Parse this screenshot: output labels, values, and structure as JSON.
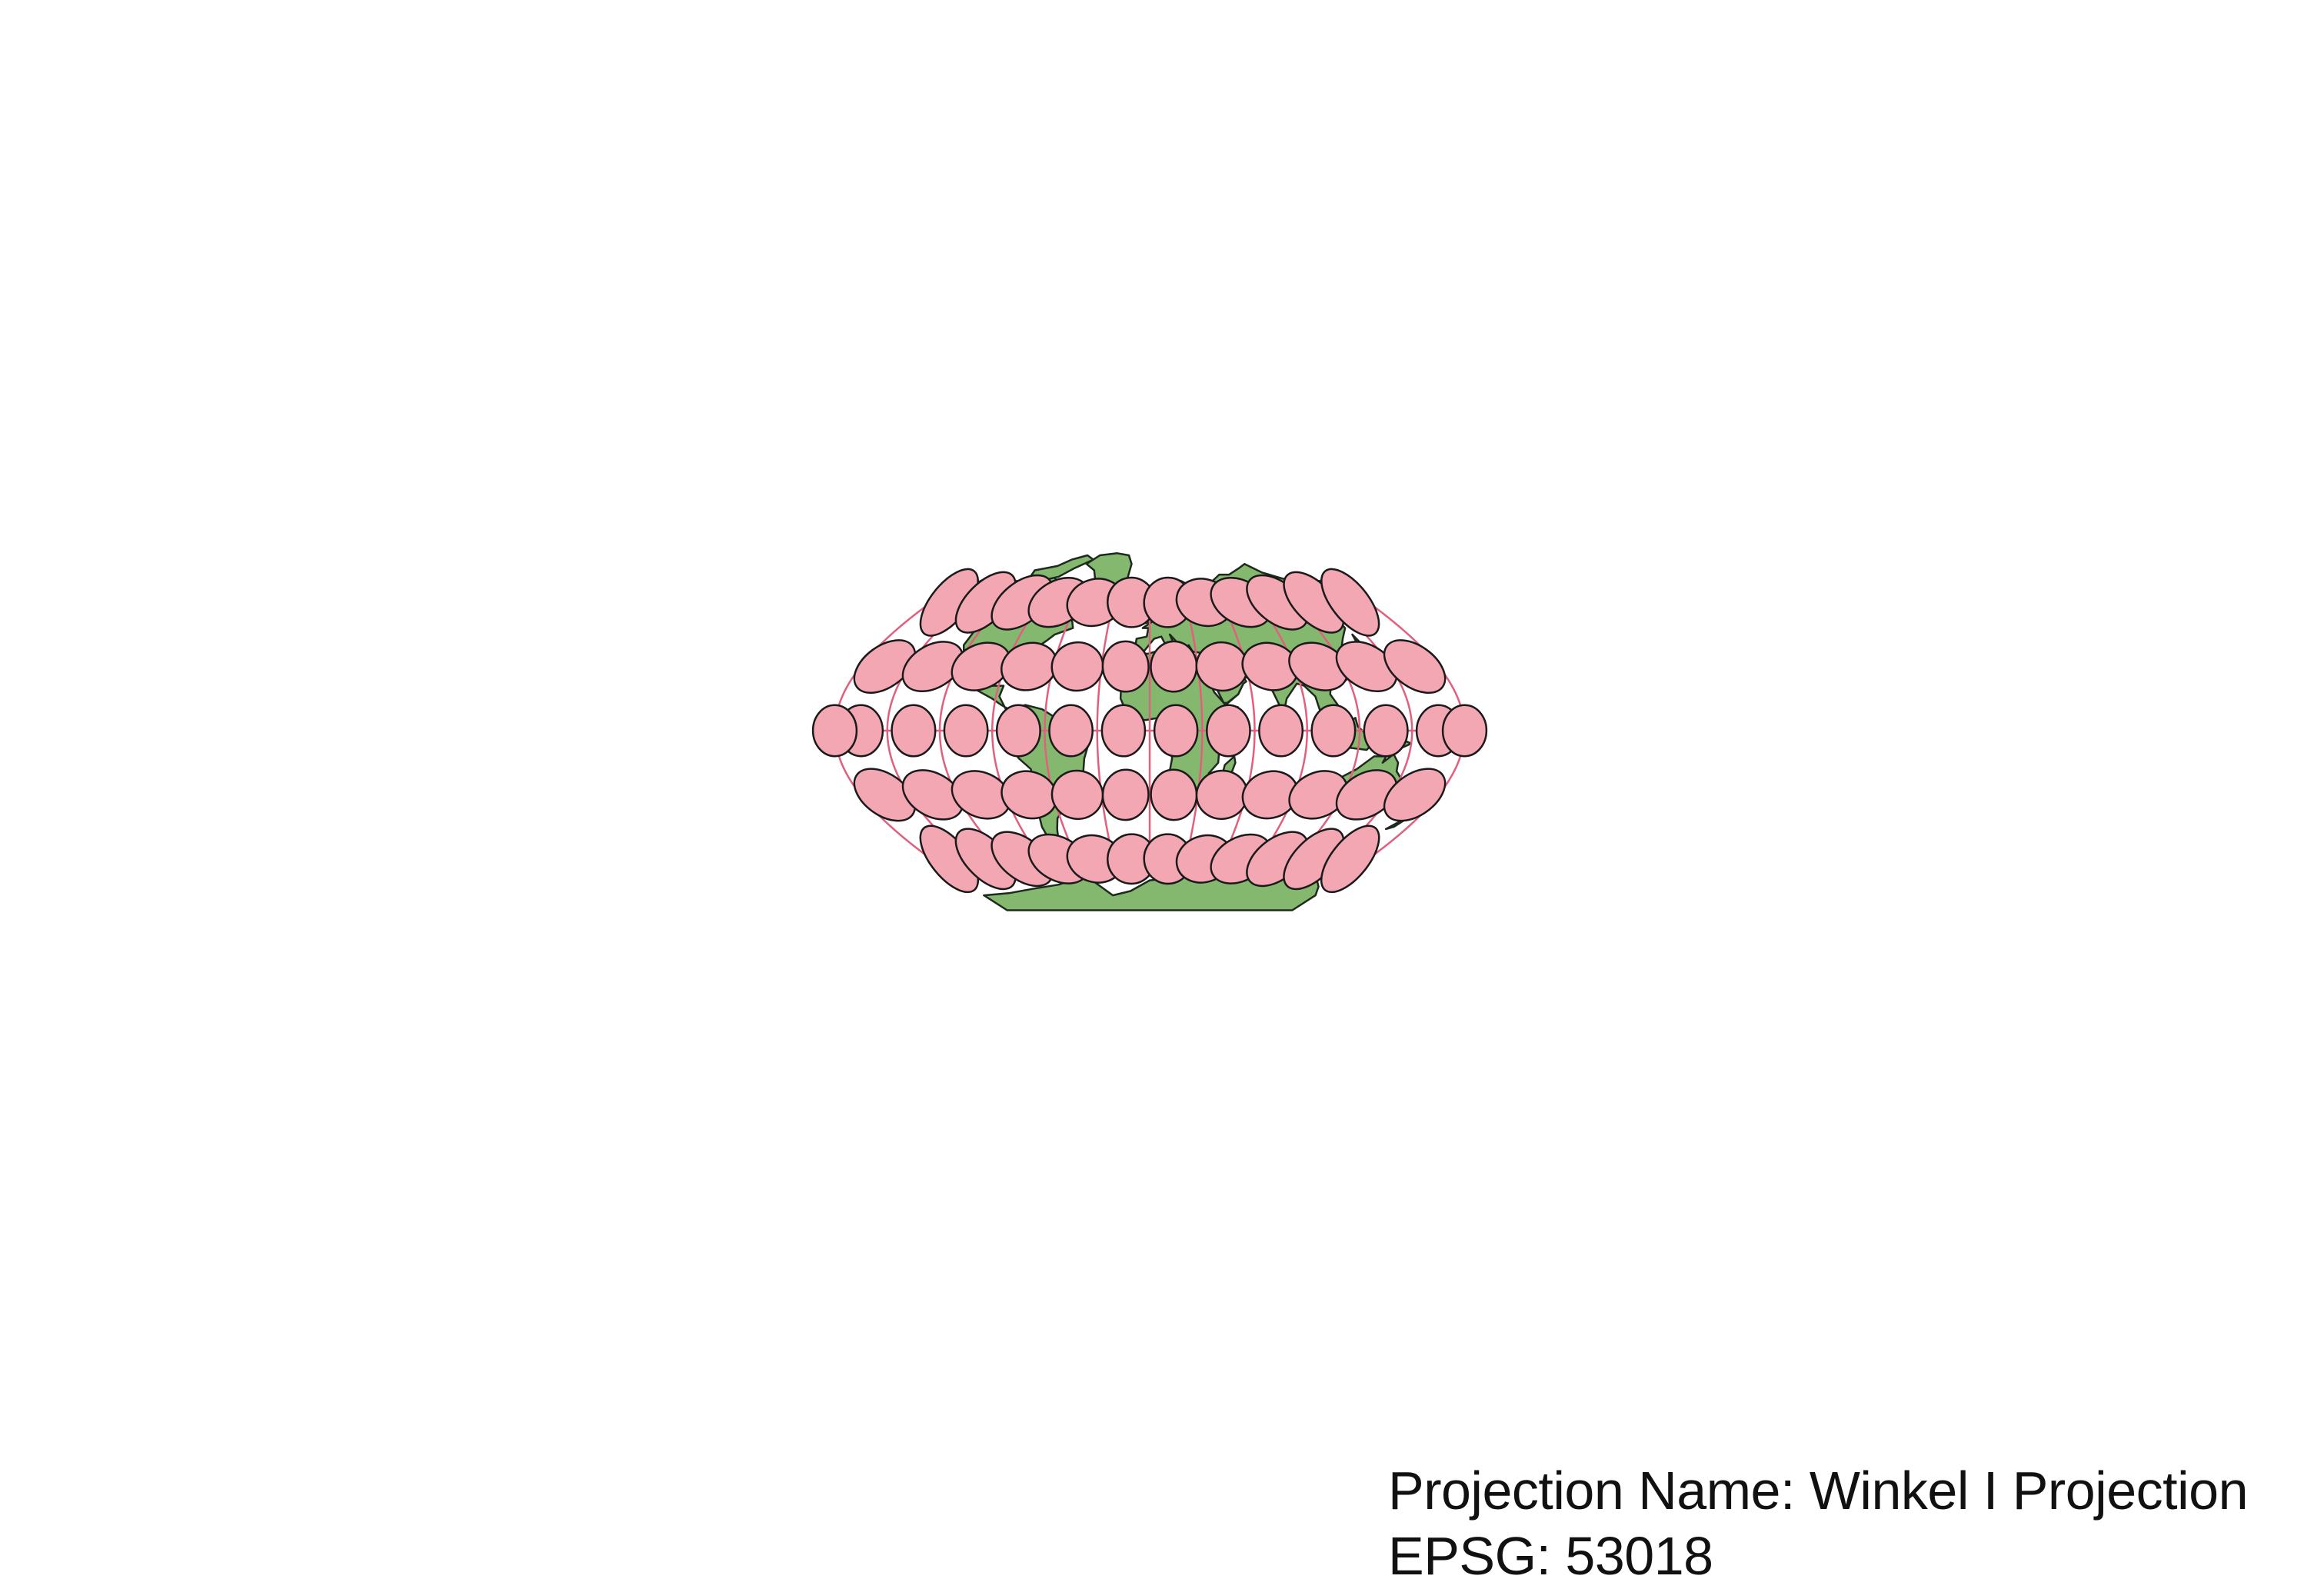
{
  "caption": {
    "projection_name": "Projection Name: Winkel I Projection",
    "epsg": "EPSG: 53018"
  },
  "colors": {
    "land": "#85b86f",
    "land_stroke": "#1d2a1d",
    "ellipse_fill": "#f2a7b3",
    "ellipse_stroke": "#1a1a1a",
    "graticule": "#e0607e",
    "background": "#ffffff"
  },
  "graticule": {
    "longitudes": [
      -180,
      -150,
      -120,
      -90,
      -60,
      -30,
      0,
      30,
      60,
      90,
      120,
      150,
      180
    ],
    "latitudes": [
      -60,
      -30,
      0,
      30,
      60
    ]
  },
  "tissot": {
    "longitudes": [
      -165,
      -135,
      -105,
      -75,
      -45,
      -15,
      15,
      45,
      75,
      105,
      135,
      165
    ],
    "latitudes": [
      -60,
      -30,
      0,
      30,
      60
    ],
    "equator_longitudes": [
      -165,
      -135,
      -105,
      -75,
      -45,
      -15,
      15,
      45,
      75,
      105,
      135,
      165,
      180
    ]
  },
  "map": {
    "projection": "Winkel I",
    "features": [
      "North America",
      "Greenland",
      "South America",
      "Europe",
      "Africa",
      "Asia",
      "Australia",
      "Antarctica",
      "Madagascar",
      "New Zealand"
    ]
  }
}
